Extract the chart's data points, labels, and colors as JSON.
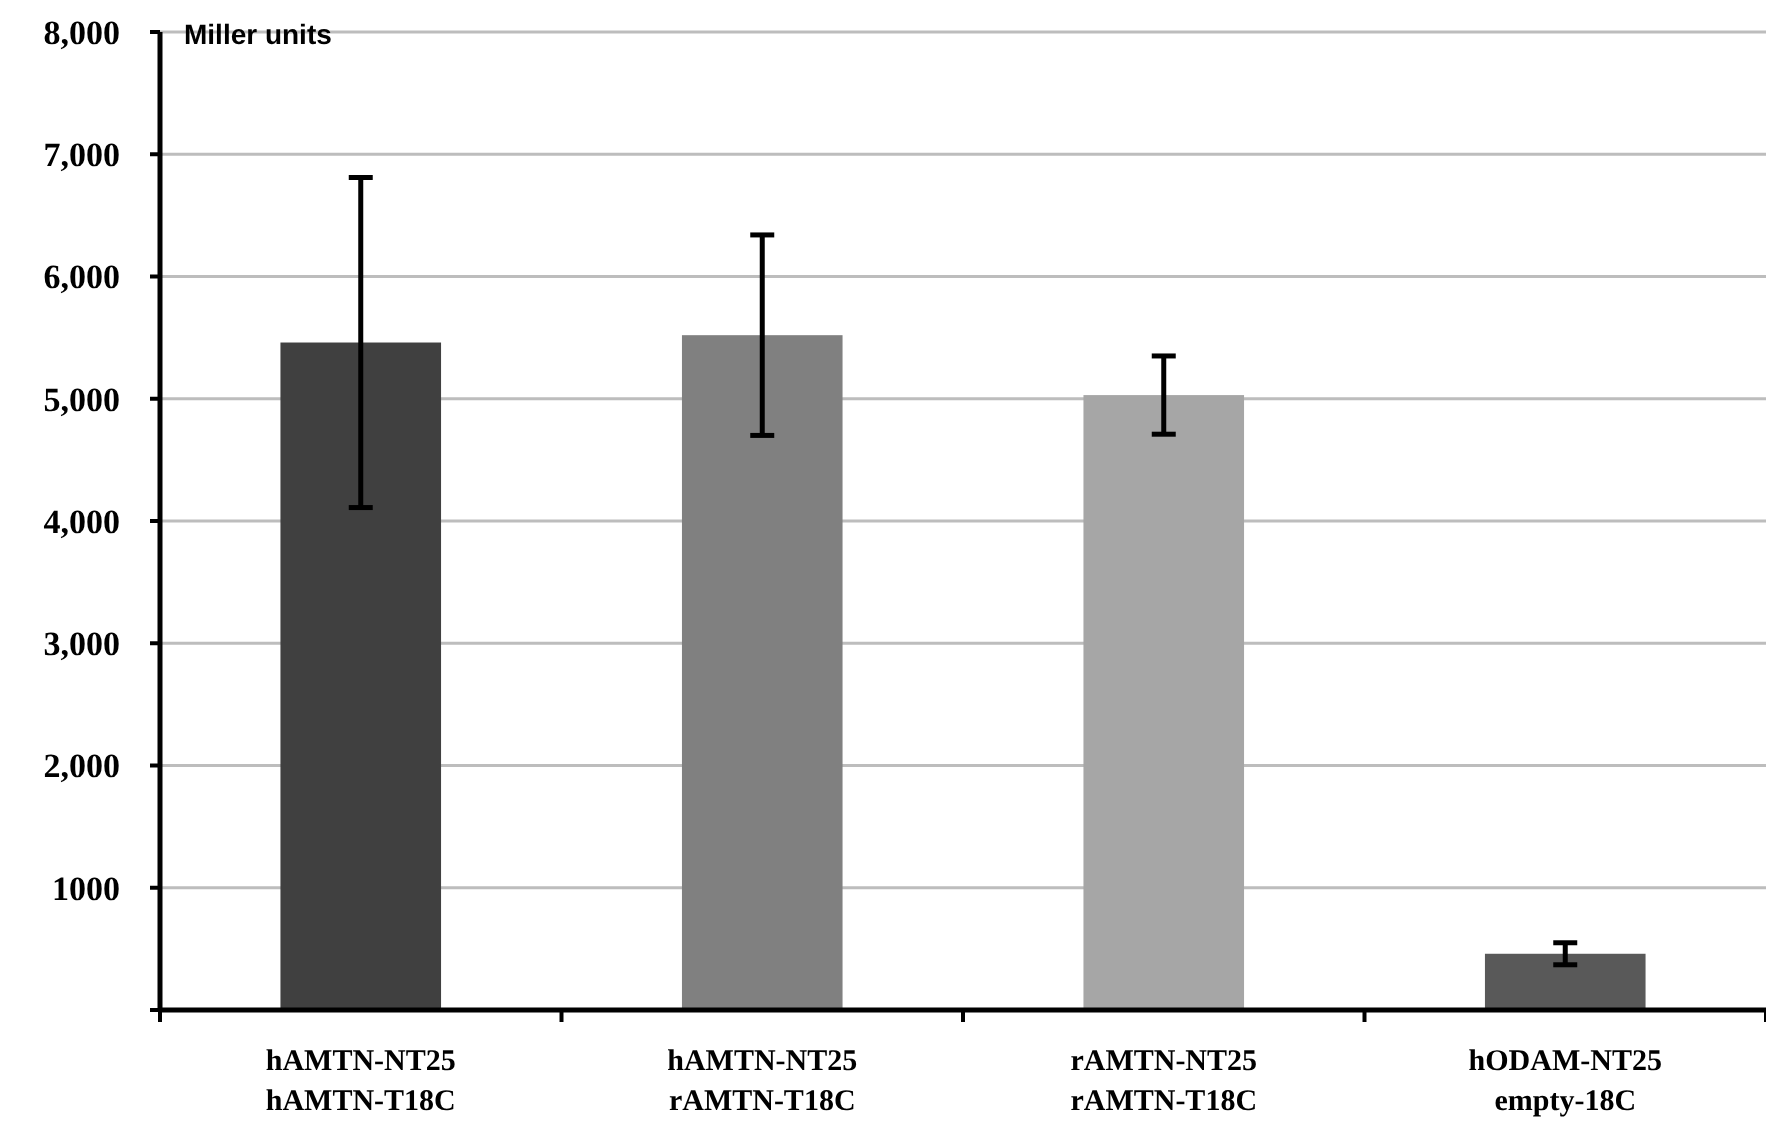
{
  "chart_data": {
    "type": "bar",
    "ylabel": "Miller units",
    "categories": [
      "hAMTN-NT25 hAMTN-T18C",
      "hAMTN-NT25 rAMTN-T18C",
      "rAMTN-NT25 rAMTN-T18C",
      "hODAM-NT25 empty-18C"
    ],
    "values": [
      5460,
      5520,
      5030,
      460
    ],
    "colors": [
      "#404040",
      "#808080",
      "#a6a6a6",
      "#595959"
    ],
    "errors": [
      1350,
      820,
      320,
      90
    ],
    "ylim": [
      0,
      8000
    ],
    "yticks": [
      {
        "value": 0,
        "label": null
      },
      {
        "value": 1000,
        "label": "1000"
      },
      {
        "value": 2000,
        "label": "2,000"
      },
      {
        "value": 3000,
        "label": "3,000"
      },
      {
        "value": 4000,
        "label": "4,000"
      },
      {
        "value": 5000,
        "label": "5,000"
      },
      {
        "value": 6000,
        "label": "6,000"
      },
      {
        "value": 7000,
        "label": "7,000"
      },
      {
        "value": 8000,
        "label": "8,000"
      }
    ],
    "grid": "y"
  }
}
